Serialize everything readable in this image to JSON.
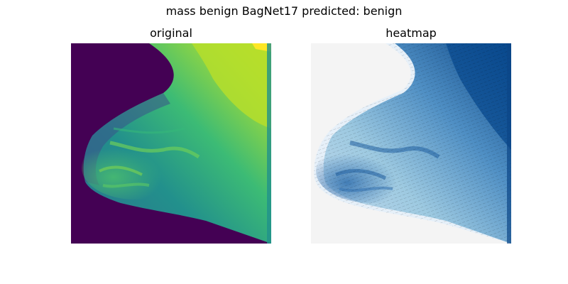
{
  "figure": {
    "suptitle": "mass benign BagNet17 predicted: benign"
  },
  "panels": [
    {
      "title": "original",
      "colormap": "viridis",
      "background_color": "#440154",
      "tissue_colors": [
        "#31688e",
        "#21918c",
        "#35b779",
        "#90d743",
        "#c6e02b"
      ]
    },
    {
      "title": "heatmap",
      "colormap": "Blues",
      "background_color": "#f4f4f4",
      "tissue_colors": [
        "#dbe9f6",
        "#9ecae1",
        "#4f8fc4",
        "#1f5fa0",
        "#0b4687"
      ],
      "overlay_color": "#000000"
    }
  ]
}
